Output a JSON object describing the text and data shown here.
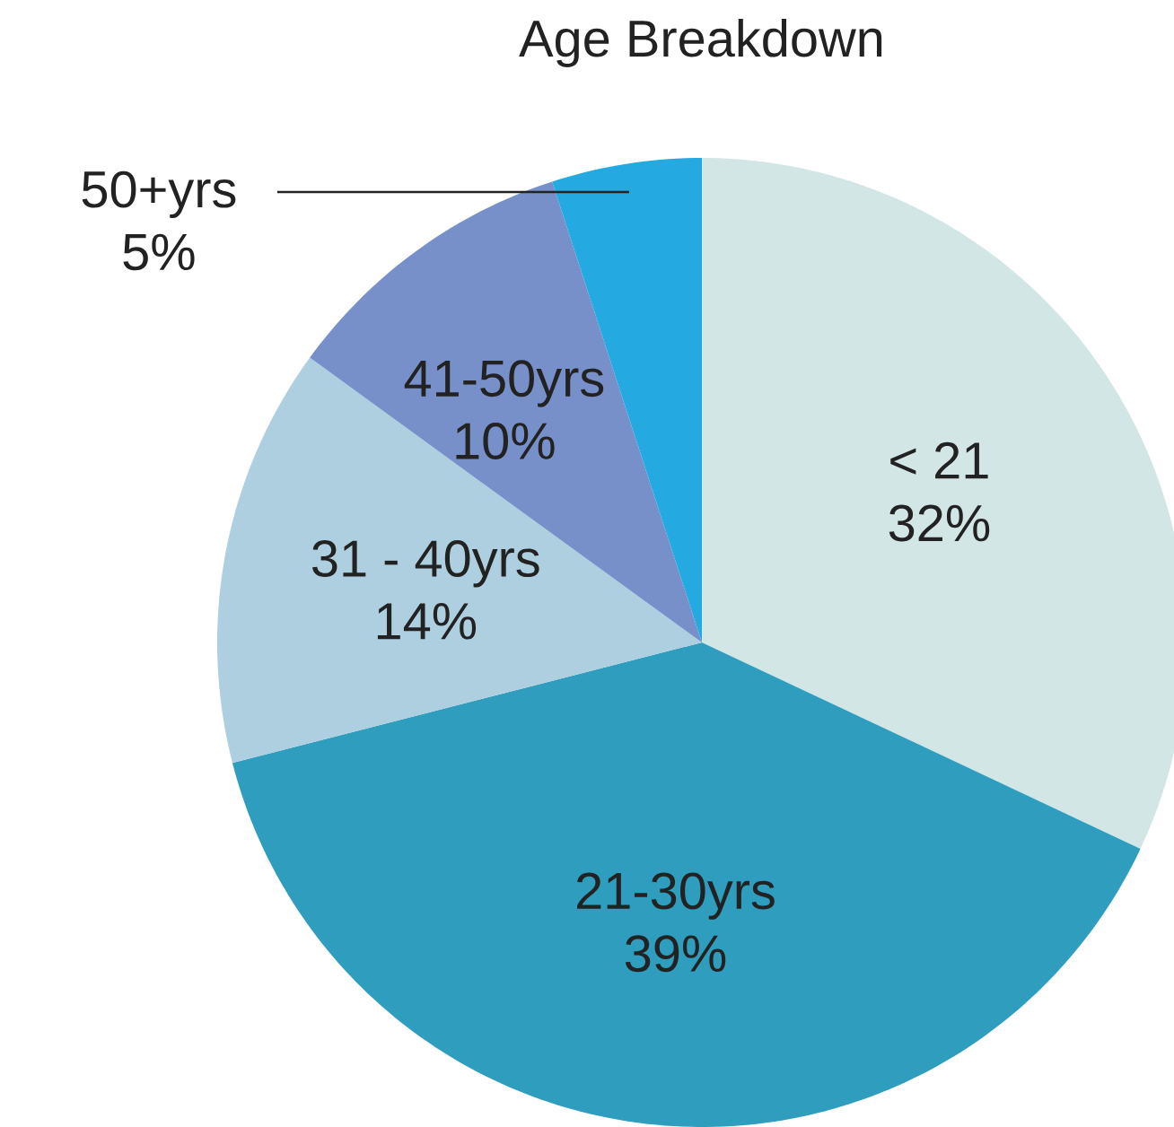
{
  "chart_data": {
    "type": "pie",
    "title": "Age Breakdown",
    "categories": [
      "< 21",
      "21-30yrs",
      "31 - 40yrs",
      "41-50yrs",
      "50+yrs"
    ],
    "values": [
      32,
      39,
      14,
      10,
      5
    ],
    "value_labels": [
      "32%",
      "39%",
      "14%",
      "10%",
      "5%"
    ],
    "colors": [
      "#d3e6e6",
      "#2f9dbd",
      "#aecfe0",
      "#7790c9",
      "#24a9e1"
    ]
  }
}
